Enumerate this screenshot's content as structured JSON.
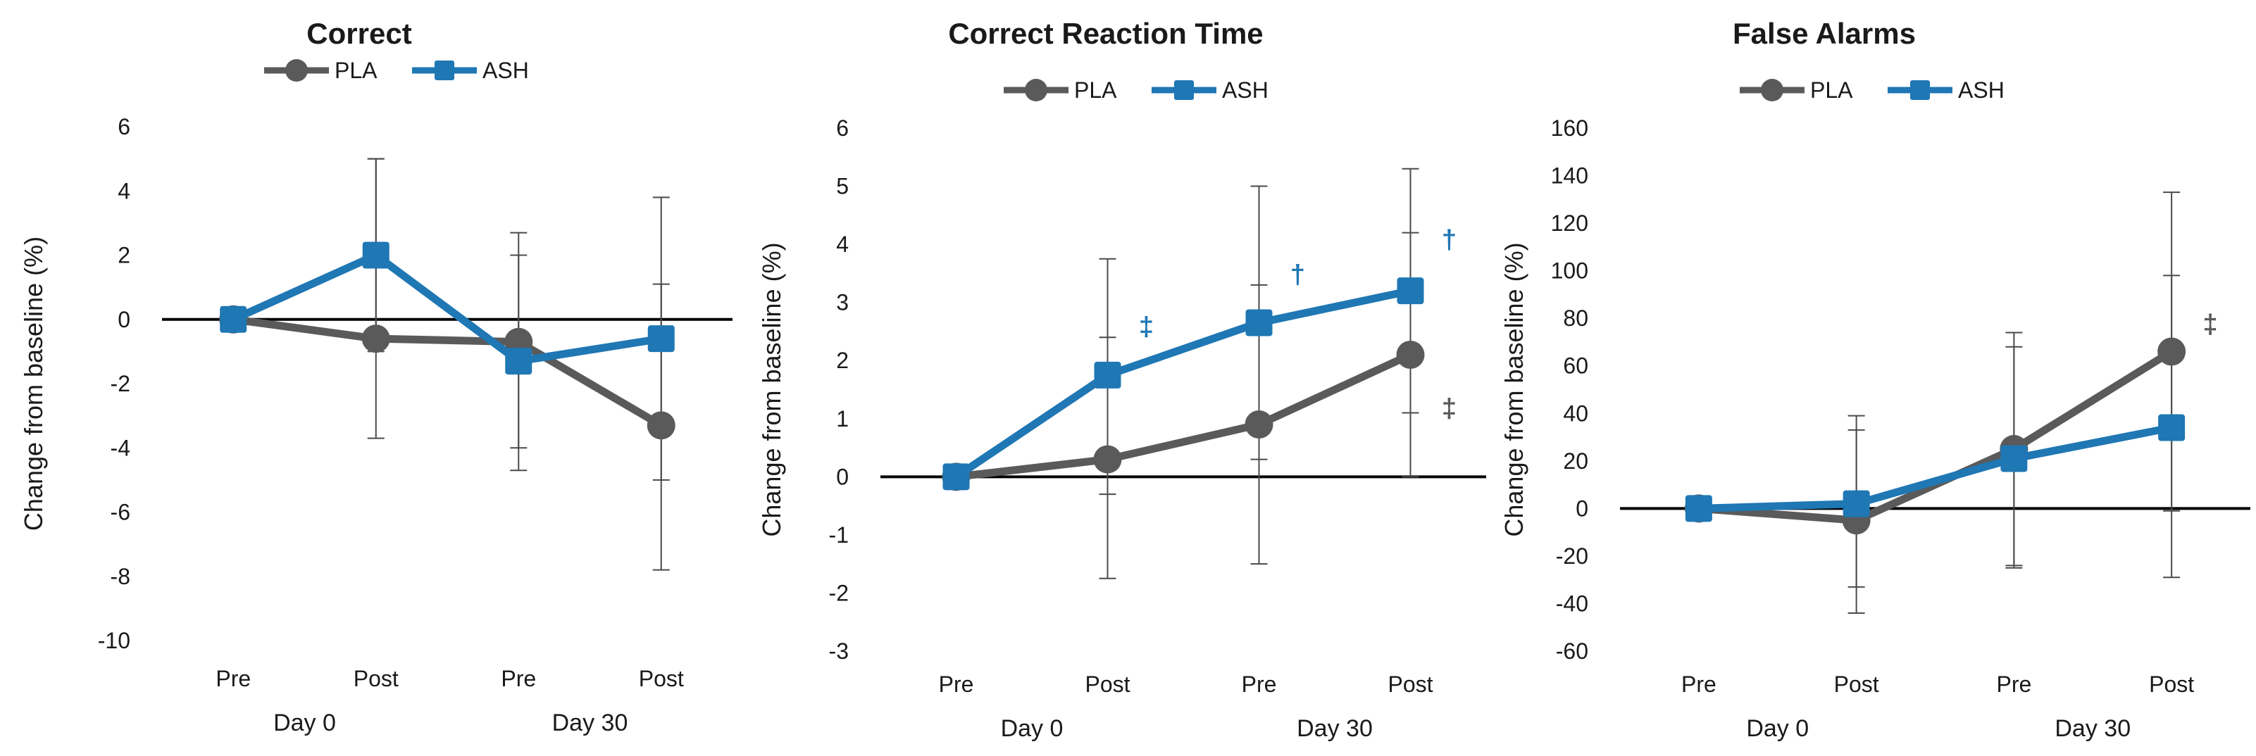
{
  "colors": {
    "PLA": "#5a5a5a",
    "ASH": "#1f77b4",
    "zero_line": "#000000",
    "error_bar": "#4a4a4a"
  },
  "chart_data": [
    {
      "type": "line",
      "title": "Correct",
      "ylabel": "Change from baseline (%)",
      "ylim": [
        -10,
        6
      ],
      "yticks": [
        6,
        4,
        2,
        0,
        -2,
        -4,
        -6,
        -8,
        -10
      ],
      "categories": [
        "Pre",
        "Post",
        "Pre",
        "Post"
      ],
      "groups": [
        {
          "label": "Day 0",
          "span": [
            0,
            1
          ]
        },
        {
          "label": "Day 30",
          "span": [
            2,
            3
          ]
        }
      ],
      "legend": [
        "PLA",
        "ASH"
      ],
      "series": [
        {
          "name": "PLA",
          "values": [
            0,
            -0.6,
            -0.7,
            -3.3
          ],
          "err_low": [
            0,
            -3.7,
            -4.7,
            -7.8
          ],
          "err_high": [
            0,
            5.0,
            2.7,
            3.8
          ]
        },
        {
          "name": "ASH",
          "values": [
            0,
            2.0,
            -1.3,
            -0.6
          ],
          "err_low": [
            0,
            -1.0,
            -4.0,
            -5.0
          ],
          "err_high": [
            0,
            5.0,
            2.0,
            1.1
          ]
        }
      ],
      "annotations": []
    },
    {
      "type": "line",
      "title": "Correct Reaction Time",
      "ylabel": "Change from baseline (%)",
      "ylim": [
        -3,
        6
      ],
      "yticks": [
        6,
        5,
        4,
        3,
        2,
        1,
        0,
        -1,
        -2,
        -3
      ],
      "categories": [
        "Pre",
        "Post",
        "Pre",
        "Post"
      ],
      "groups": [
        {
          "label": "Day 0",
          "span": [
            0,
            1
          ]
        },
        {
          "label": "Day 30",
          "span": [
            2,
            3
          ]
        }
      ],
      "legend": [
        "PLA",
        "ASH"
      ],
      "series": [
        {
          "name": "PLA",
          "values": [
            0,
            0.3,
            0.9,
            2.1
          ],
          "err_low": [
            0,
            -1.75,
            -1.5,
            0
          ],
          "err_high": [
            0,
            2.4,
            3.3,
            4.2
          ]
        },
        {
          "name": "ASH",
          "values": [
            0,
            1.75,
            2.65,
            3.2
          ],
          "err_low": [
            0,
            -0.3,
            0.3,
            1.1
          ],
          "err_high": [
            0,
            3.75,
            5.0,
            5.3
          ]
        }
      ],
      "annotations": [
        {
          "text": "‡",
          "series": "ASH",
          "index": 1,
          "y": 2.6
        },
        {
          "text": "†",
          "series": "ASH",
          "index": 2,
          "y": 3.5
        },
        {
          "text": "†",
          "series": "ASH",
          "index": 3,
          "y": 4.1
        },
        {
          "text": "‡",
          "series": "PLA",
          "index": 3,
          "y": 1.2
        }
      ]
    },
    {
      "type": "line",
      "title": "False Alarms",
      "ylabel": "Change from baseline (%)",
      "ylim": [
        -60,
        160
      ],
      "yticks": [
        160,
        140,
        120,
        100,
        80,
        60,
        40,
        20,
        0,
        -20,
        -40,
        -60
      ],
      "categories": [
        "Pre",
        "Post",
        "Pre",
        "Post"
      ],
      "groups": [
        {
          "label": "Day 0",
          "span": [
            0,
            1
          ]
        },
        {
          "label": "Day 30",
          "span": [
            2,
            3
          ]
        }
      ],
      "legend": [
        "PLA",
        "ASH"
      ],
      "series": [
        {
          "name": "PLA",
          "values": [
            0,
            -5,
            25,
            66
          ],
          "err_low": [
            0,
            -44,
            -25,
            -29
          ],
          "err_high": [
            0,
            39,
            74,
            133
          ]
        },
        {
          "name": "ASH",
          "values": [
            0,
            2,
            21,
            34
          ],
          "err_low": [
            0,
            -33,
            -24,
            -1
          ],
          "err_high": [
            0,
            33,
            68,
            98
          ]
        }
      ],
      "annotations": [
        {
          "text": "‡",
          "series": "PLA",
          "index": 3,
          "y": 78
        }
      ]
    }
  ]
}
